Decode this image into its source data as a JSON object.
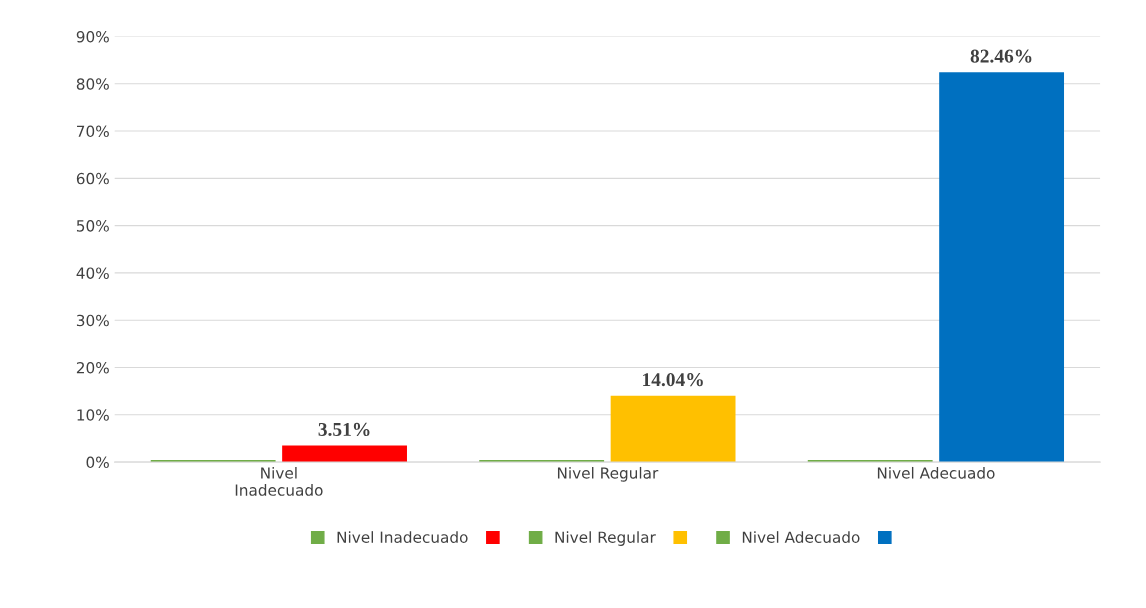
{
  "chart_data": {
    "type": "bar",
    "categories": [
      "Nivel\nInadecuado",
      "Nivel Regular",
      "Nivel Adecuado"
    ],
    "series": [
      {
        "name": "Nivel Inadecuado",
        "color": "#70ad47",
        "values": [
          0,
          null,
          null
        ]
      },
      {
        "color": "#ff0000",
        "values": [
          3.51,
          null,
          null
        ],
        "value_labels": [
          "3.51%",
          null,
          null
        ]
      },
      {
        "name": "Nivel Regular",
        "color": "#70ad47",
        "values": [
          null,
          0,
          null
        ]
      },
      {
        "color": "#ffc000",
        "values": [
          null,
          14.04,
          null
        ],
        "value_labels": [
          null,
          "14.04%",
          null
        ]
      },
      {
        "name": "Nivel Adecuado",
        "color": "#70ad47",
        "values": [
          null,
          null,
          0
        ]
      },
      {
        "color": "#0070c0",
        "values": [
          null,
          null,
          82.46
        ],
        "value_labels": [
          null,
          null,
          "82.46%"
        ]
      }
    ],
    "ylim": [
      0,
      90
    ],
    "yticks": [
      {
        "value": 0,
        "label": "0%"
      },
      {
        "value": 10,
        "label": "10%"
      },
      {
        "value": 20,
        "label": "20%"
      },
      {
        "value": 30,
        "label": "30%"
      },
      {
        "value": 40,
        "label": "40%"
      },
      {
        "value": 50,
        "label": "50%"
      },
      {
        "value": 60,
        "label": "60%"
      },
      {
        "value": 70,
        "label": "70%"
      },
      {
        "value": 80,
        "label": "80%"
      },
      {
        "value": 90,
        "label": "90%"
      }
    ],
    "grid": "y",
    "legend": "bottom"
  }
}
